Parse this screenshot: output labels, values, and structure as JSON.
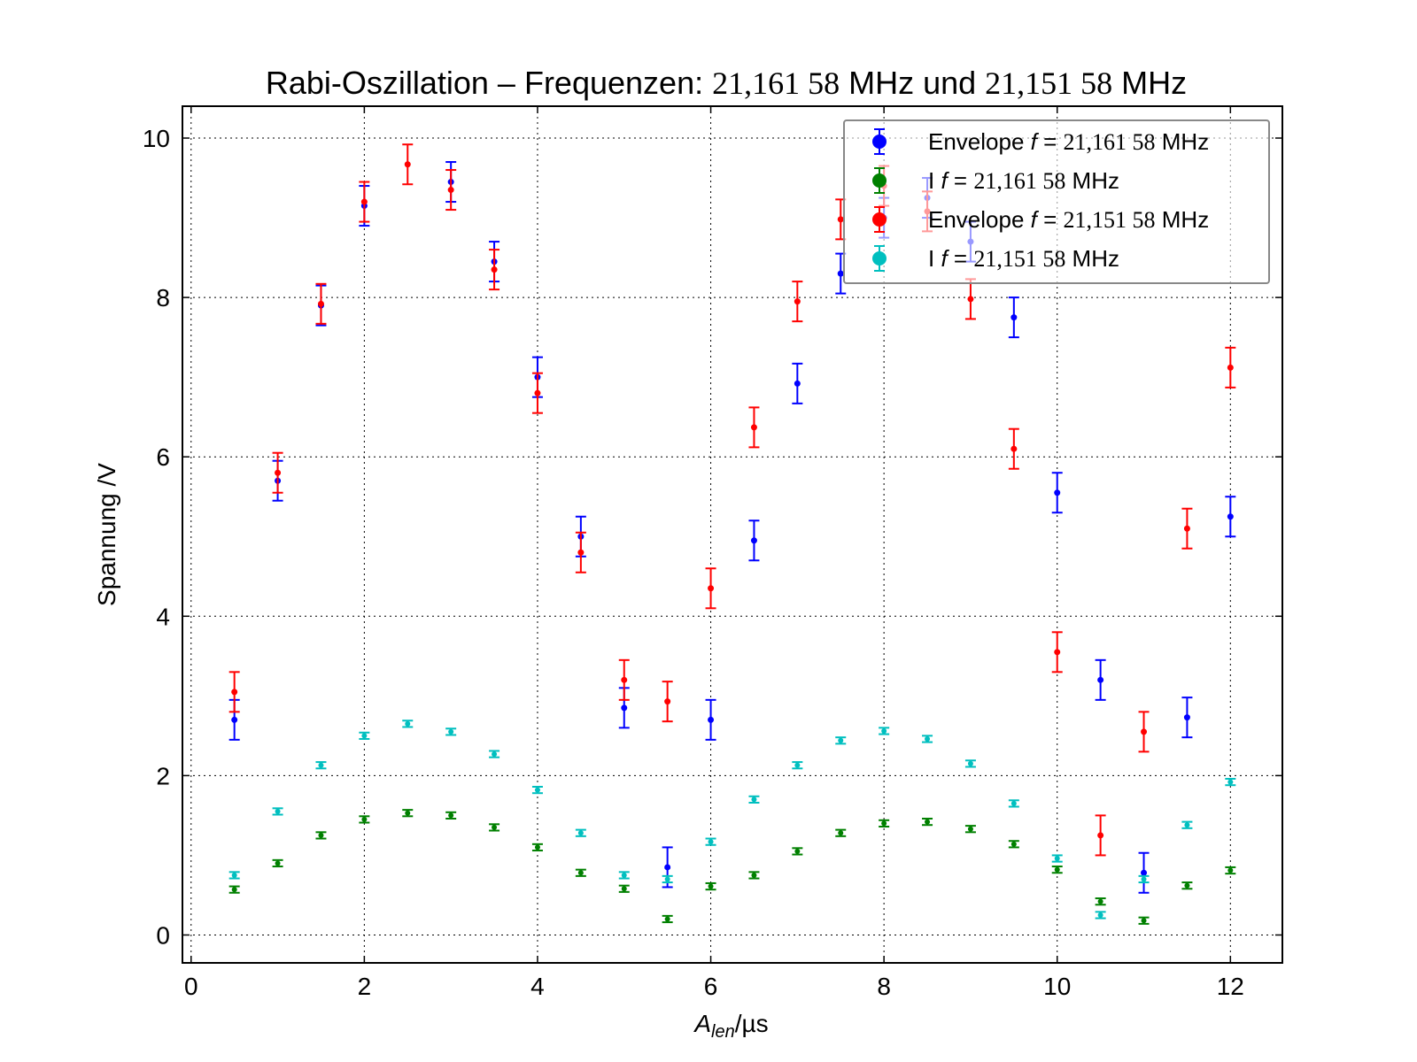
{
  "chart_data": {
    "type": "scatter",
    "title": {
      "prefix": "Rabi-Oszillation – Frequenzen: ",
      "freq1": "21,161 58",
      "unit1": " MHz und ",
      "freq2": "21,151 58",
      "unit2": " MHz"
    },
    "xlabel": {
      "var": "A",
      "sub": "len",
      "unit": "/µs"
    },
    "ylabel": "Spannung /V",
    "xlim": [
      -0.1,
      12.6
    ],
    "ylim": [
      -0.35,
      10.4
    ],
    "xticks": [
      0,
      2,
      4,
      6,
      8,
      10,
      12
    ],
    "yticks": [
      0,
      2,
      4,
      6,
      8,
      10
    ],
    "grid": true,
    "legend_position": "top-right",
    "x": [
      0.5,
      1.0,
      1.5,
      2.0,
      2.5,
      3.0,
      3.5,
      4.0,
      4.5,
      5.0,
      5.5,
      6.0,
      6.5,
      7.0,
      7.5,
      8.0,
      8.5,
      9.0,
      9.5,
      10.0,
      10.5,
      11.0,
      11.5,
      12.0
    ],
    "series": [
      {
        "name_prefix": "Envelope ",
        "name_var": "f",
        "name_eq": " = ",
        "name_value": "21,161 58",
        "name_unit": " MHz",
        "color": "#0000ff",
        "x": [
          0.5,
          1.0,
          1.5,
          2.0,
          3.0,
          3.5,
          4.0,
          4.5,
          5.0,
          5.5,
          6.0,
          6.5,
          7.0,
          7.5,
          8.0,
          8.5,
          9.0,
          9.5,
          10.0,
          10.5,
          11.0,
          11.5,
          12.0
        ],
        "values": [
          2.7,
          5.7,
          7.9,
          9.15,
          9.45,
          8.45,
          7.0,
          5.0,
          2.85,
          0.85,
          2.7,
          4.95,
          6.92,
          8.3,
          9.0,
          9.25,
          8.7,
          7.75,
          5.55,
          3.2,
          0.78,
          2.73,
          5.25
        ],
        "yerr": 0.25,
        "marker_size": 3.5
      },
      {
        "name_prefix": "I ",
        "name_var": "f",
        "name_eq": " = ",
        "name_value": "21,161 58",
        "name_unit": " MHz",
        "color": "#008000",
        "values": [
          0.57,
          0.9,
          1.25,
          1.45,
          1.53,
          1.5,
          1.35,
          1.1,
          0.78,
          0.58,
          0.2,
          0.61,
          0.75,
          1.05,
          1.28,
          1.4,
          1.42,
          1.33,
          1.14,
          0.82,
          0.42,
          0.18,
          0.62,
          0.81
        ],
        "yerr": 0.04,
        "marker_size": 3
      },
      {
        "name_prefix": "Envelope ",
        "name_var": "f",
        "name_eq": " = ",
        "name_value": "21,151 58",
        "name_unit": " MHz",
        "color": "#ff0000",
        "values": [
          3.05,
          5.8,
          7.92,
          9.2,
          9.67,
          9.35,
          8.35,
          6.8,
          4.8,
          3.2,
          2.93,
          4.35,
          6.37,
          7.95,
          8.98,
          9.4,
          9.08,
          7.98,
          6.1,
          3.55,
          1.25,
          2.55,
          5.1,
          7.12
        ],
        "yerr": 0.25,
        "marker_size": 3.5
      },
      {
        "name_prefix": "I ",
        "name_var": "f",
        "name_eq": " = ",
        "name_value": "21,151 58",
        "name_unit": " MHz",
        "color": "#00bfbf",
        "values": [
          0.75,
          1.55,
          2.13,
          2.5,
          2.65,
          2.55,
          2.27,
          1.82,
          1.28,
          0.75,
          0.7,
          1.17,
          1.7,
          2.13,
          2.44,
          2.56,
          2.46,
          2.15,
          1.65,
          0.96,
          0.25,
          0.7,
          1.38,
          1.92
        ],
        "yerr": 0.04,
        "marker_size": 3
      }
    ]
  }
}
